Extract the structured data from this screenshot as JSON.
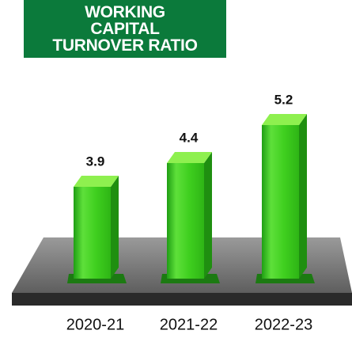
{
  "chart_data": {
    "type": "bar3d",
    "title": "WORKING CAPITAL TURNOVER RATIO",
    "categories": [
      "2020-21",
      "2021-22",
      "2022-23"
    ],
    "values": [
      3.9,
      4.4,
      5.2
    ],
    "color": "#3fcf1f"
  }
}
